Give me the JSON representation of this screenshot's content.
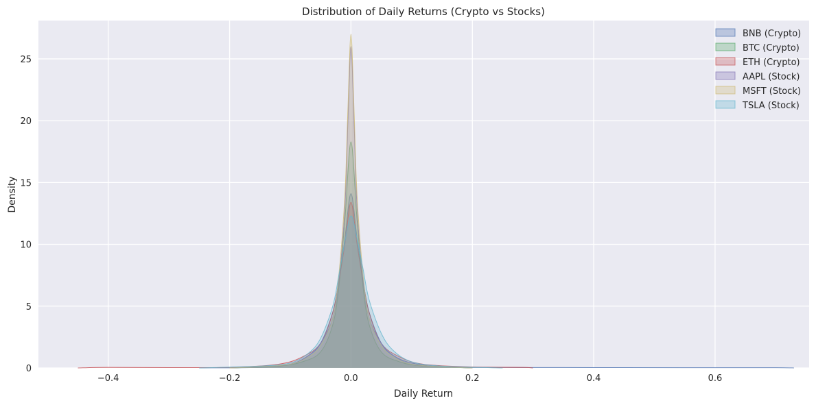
{
  "chart_data": {
    "type": "area",
    "subtype": "kde",
    "title": "Distribution of Daily Returns (Crypto vs Stocks)",
    "xlabel": "Daily Return",
    "ylabel": "Density",
    "xlim": [
      -0.515,
      0.755
    ],
    "ylim": [
      0,
      28.1
    ],
    "xticks": [
      -0.4,
      -0.2,
      0.0,
      0.2,
      0.4,
      0.6
    ],
    "xtick_labels": [
      "−0.4",
      "−0.2",
      "0.0",
      "0.2",
      "0.4",
      "0.6"
    ],
    "yticks": [
      0,
      5,
      10,
      15,
      20,
      25
    ],
    "ytick_labels": [
      "0",
      "5",
      "10",
      "15",
      "20",
      "25"
    ],
    "grid": true,
    "background": "#eaeaf2",
    "legend_position": "top-right",
    "series": [
      {
        "name": "BNB (Crypto)",
        "color": "#4c72b0",
        "x": [
          -0.25,
          -0.15,
          -0.1,
          -0.07,
          -0.05,
          -0.03,
          -0.02,
          -0.01,
          0.0,
          0.01,
          0.02,
          0.03,
          0.05,
          0.07,
          0.1,
          0.15,
          0.25,
          0.4,
          0.55,
          0.7,
          0.73
        ],
        "values": [
          0.0,
          0.05,
          0.3,
          1.0,
          2.0,
          4.5,
          7.0,
          10.5,
          14.1,
          10.5,
          7.0,
          4.5,
          2.0,
          1.0,
          0.4,
          0.1,
          0.04,
          0.03,
          0.02,
          0.02,
          0.0
        ]
      },
      {
        "name": "BTC (Crypto)",
        "color": "#55a868",
        "x": [
          -0.2,
          -0.12,
          -0.08,
          -0.05,
          -0.03,
          -0.02,
          -0.01,
          0.0,
          0.01,
          0.02,
          0.03,
          0.05,
          0.08,
          0.12,
          0.2
        ],
        "values": [
          0.0,
          0.15,
          0.5,
          1.3,
          3.5,
          6.5,
          12.0,
          18.3,
          12.0,
          6.5,
          3.5,
          1.3,
          0.5,
          0.15,
          0.0
        ]
      },
      {
        "name": "ETH (Crypto)",
        "color": "#c44e52",
        "x": [
          -0.45,
          -0.4,
          -0.3,
          -0.2,
          -0.12,
          -0.08,
          -0.05,
          -0.03,
          -0.02,
          -0.01,
          0.0,
          0.01,
          0.02,
          0.03,
          0.05,
          0.08,
          0.12,
          0.2,
          0.28,
          0.3
        ],
        "values": [
          0.0,
          0.05,
          0.03,
          0.05,
          0.3,
          0.9,
          2.0,
          4.5,
          7.0,
          10.0,
          13.4,
          10.0,
          7.0,
          4.5,
          2.0,
          0.9,
          0.3,
          0.08,
          0.05,
          0.0
        ]
      },
      {
        "name": "AAPL (Stock)",
        "color": "#8172b3",
        "x": [
          -0.2,
          -0.15,
          -0.1,
          -0.07,
          -0.05,
          -0.03,
          -0.02,
          -0.01,
          -0.005,
          0.0,
          0.005,
          0.01,
          0.02,
          0.03,
          0.05,
          0.07,
          0.1,
          0.15,
          0.2
        ],
        "values": [
          0.0,
          0.1,
          0.3,
          1.0,
          2.0,
          4.0,
          7.0,
          13.0,
          20.0,
          26.0,
          20.0,
          13.0,
          7.0,
          4.0,
          2.0,
          1.0,
          0.3,
          0.1,
          0.0
        ]
      },
      {
        "name": "MSFT (Stock)",
        "color": "#ccb974",
        "x": [
          -0.2,
          -0.15,
          -0.1,
          -0.07,
          -0.05,
          -0.03,
          -0.02,
          -0.01,
          -0.005,
          0.0,
          0.005,
          0.01,
          0.02,
          0.03,
          0.05,
          0.07,
          0.1,
          0.15,
          0.2
        ],
        "values": [
          0.0,
          0.1,
          0.3,
          0.9,
          1.8,
          4.0,
          7.5,
          14.0,
          21.0,
          27.0,
          21.0,
          14.0,
          7.5,
          4.0,
          1.8,
          0.9,
          0.3,
          0.1,
          0.0
        ]
      },
      {
        "name": "TSLA (Stock)",
        "color": "#64b5cd",
        "x": [
          -0.25,
          -0.15,
          -0.1,
          -0.07,
          -0.05,
          -0.03,
          -0.02,
          -0.01,
          0.0,
          0.01,
          0.02,
          0.03,
          0.05,
          0.07,
          0.1,
          0.15,
          0.25
        ],
        "values": [
          0.0,
          0.15,
          0.4,
          1.2,
          2.4,
          5.0,
          7.5,
          10.2,
          12.3,
          10.5,
          8.0,
          5.5,
          2.8,
          1.4,
          0.5,
          0.15,
          0.0
        ]
      }
    ]
  }
}
